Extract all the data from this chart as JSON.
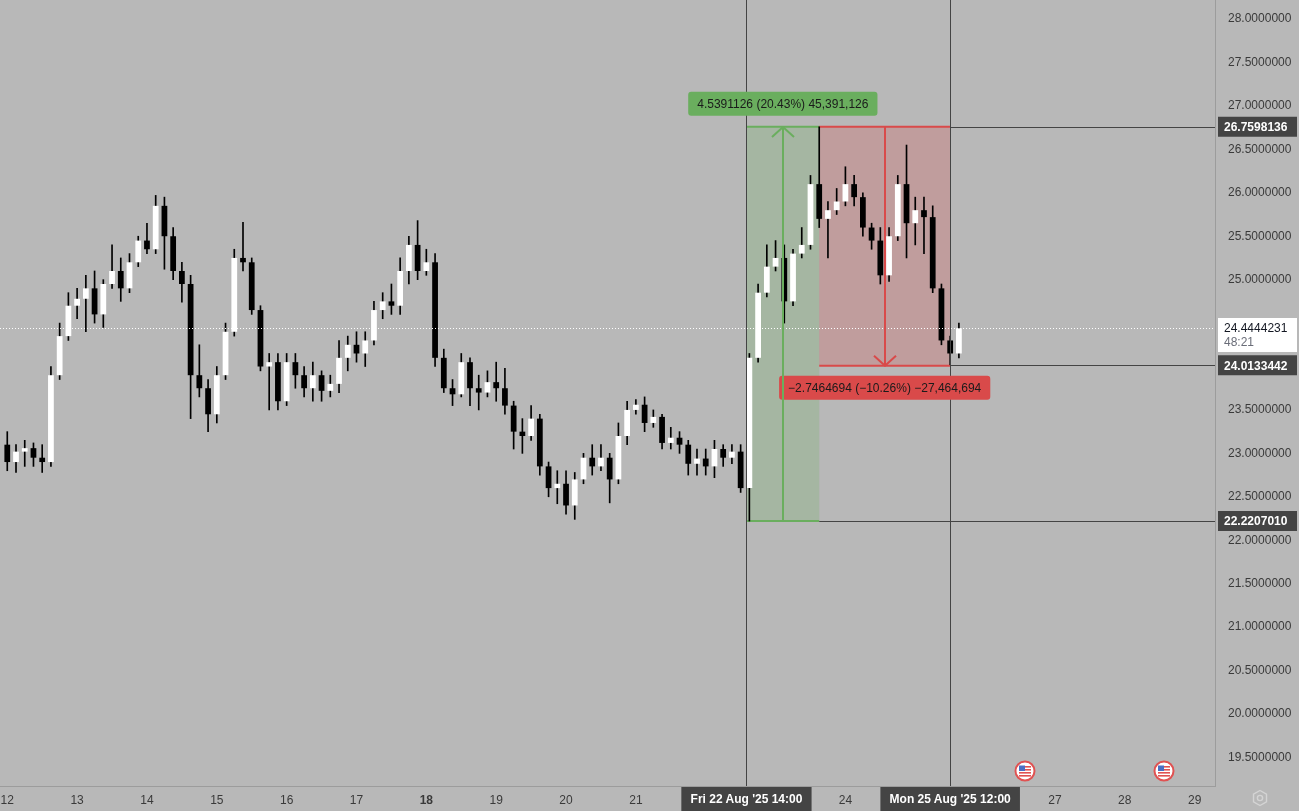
{
  "chart_data": {
    "type": "candlestick",
    "x": [
      "2025-08-12T00:00",
      "2025-08-12T03:00",
      "2025-08-12T06:00",
      "2025-08-12T09:00",
      "2025-08-12T12:00",
      "2025-08-12T15:00",
      "2025-08-12T18:00",
      "2025-08-12T21:00",
      "2025-08-13T00:00",
      "2025-08-13T03:00",
      "2025-08-13T06:00",
      "2025-08-13T09:00",
      "2025-08-13T12:00",
      "2025-08-13T15:00",
      "2025-08-13T18:00",
      "2025-08-13T21:00",
      "2025-08-14T00:00",
      "2025-08-14T03:00",
      "2025-08-14T06:00",
      "2025-08-14T09:00",
      "2025-08-14T12:00",
      "2025-08-14T15:00",
      "2025-08-14T18:00",
      "2025-08-14T21:00",
      "2025-08-15T00:00",
      "2025-08-15T03:00",
      "2025-08-15T06:00",
      "2025-08-15T09:00",
      "2025-08-15T12:00",
      "2025-08-15T15:00",
      "2025-08-15T18:00",
      "2025-08-15T21:00",
      "2025-08-16T00:00",
      "2025-08-16T03:00",
      "2025-08-16T06:00",
      "2025-08-16T09:00",
      "2025-08-16T12:00",
      "2025-08-16T15:00",
      "2025-08-16T18:00",
      "2025-08-16T21:00",
      "2025-08-17T00:00",
      "2025-08-17T03:00",
      "2025-08-17T06:00",
      "2025-08-17T09:00",
      "2025-08-17T12:00",
      "2025-08-17T15:00",
      "2025-08-17T18:00",
      "2025-08-17T21:00",
      "2025-08-18T00:00",
      "2025-08-18T03:00",
      "2025-08-18T06:00",
      "2025-08-18T09:00",
      "2025-08-18T12:00",
      "2025-08-18T15:00",
      "2025-08-18T18:00",
      "2025-08-18T21:00",
      "2025-08-19T00:00",
      "2025-08-19T03:00",
      "2025-08-19T06:00",
      "2025-08-19T09:00",
      "2025-08-19T12:00",
      "2025-08-19T15:00",
      "2025-08-19T18:00",
      "2025-08-19T21:00",
      "2025-08-20T00:00",
      "2025-08-20T03:00",
      "2025-08-20T06:00",
      "2025-08-20T09:00",
      "2025-08-20T12:00",
      "2025-08-20T15:00",
      "2025-08-20T18:00",
      "2025-08-20T21:00",
      "2025-08-21T00:00",
      "2025-08-21T03:00",
      "2025-08-21T06:00",
      "2025-08-21T09:00",
      "2025-08-21T12:00",
      "2025-08-21T15:00",
      "2025-08-21T18:00",
      "2025-08-21T21:00",
      "2025-08-22T00:00",
      "2025-08-22T03:00",
      "2025-08-22T06:00",
      "2025-08-22T09:00",
      "2025-08-22T12:00",
      "2025-08-22T15:00",
      "2025-08-22T18:00",
      "2025-08-22T21:00",
      "2025-08-23T00:00",
      "2025-08-23T03:00",
      "2025-08-23T06:00",
      "2025-08-23T09:00",
      "2025-08-23T12:00",
      "2025-08-23T15:00",
      "2025-08-23T18:00",
      "2025-08-23T21:00",
      "2025-08-24T00:00",
      "2025-08-24T03:00",
      "2025-08-24T06:00",
      "2025-08-24T09:00",
      "2025-08-24T12:00",
      "2025-08-24T15:00",
      "2025-08-24T18:00",
      "2025-08-24T21:00",
      "2025-08-25T00:00",
      "2025-08-25T03:00",
      "2025-08-25T06:00",
      "2025-08-25T09:00",
      "2025-08-25T12:00",
      "2025-08-25T15:00"
    ],
    "ohlc": [
      [
        23.1,
        23.25,
        22.8,
        22.9
      ],
      [
        22.9,
        23.1,
        22.78,
        23.02
      ],
      [
        23.02,
        23.15,
        22.85,
        23.06
      ],
      [
        23.06,
        23.12,
        22.85,
        22.95
      ],
      [
        22.95,
        23.1,
        22.78,
        22.9
      ],
      [
        22.9,
        24.0,
        22.85,
        23.9
      ],
      [
        23.9,
        24.5,
        23.85,
        24.35
      ],
      [
        24.35,
        24.85,
        24.3,
        24.7
      ],
      [
        24.7,
        24.9,
        24.55,
        24.78
      ],
      [
        24.78,
        25.05,
        24.4,
        24.9
      ],
      [
        24.9,
        25.1,
        24.5,
        24.6
      ],
      [
        24.6,
        25.0,
        24.45,
        24.95
      ],
      [
        24.95,
        25.4,
        24.9,
        25.1
      ],
      [
        25.1,
        25.25,
        24.75,
        24.9
      ],
      [
        24.9,
        25.3,
        24.85,
        25.2
      ],
      [
        25.2,
        25.5,
        25.15,
        25.45
      ],
      [
        25.45,
        25.65,
        25.3,
        25.35
      ],
      [
        25.35,
        25.97,
        25.3,
        25.85
      ],
      [
        25.85,
        25.95,
        25.12,
        25.5
      ],
      [
        25.5,
        25.6,
        25.0,
        25.1
      ],
      [
        25.1,
        25.2,
        24.74,
        24.95
      ],
      [
        24.95,
        25.05,
        23.4,
        23.9
      ],
      [
        23.9,
        24.25,
        23.65,
        23.75
      ],
      [
        23.75,
        23.85,
        23.25,
        23.45
      ],
      [
        23.45,
        24.0,
        23.35,
        23.9
      ],
      [
        23.9,
        24.5,
        23.85,
        24.4
      ],
      [
        24.4,
        25.35,
        24.35,
        25.25
      ],
      [
        25.25,
        25.66,
        25.1,
        25.2
      ],
      [
        25.2,
        25.25,
        24.6,
        24.65
      ],
      [
        24.65,
        24.7,
        23.95,
        24.0
      ],
      [
        24.0,
        24.15,
        23.5,
        24.05
      ],
      [
        24.05,
        24.15,
        23.5,
        23.6
      ],
      [
        23.6,
        24.15,
        23.55,
        24.05
      ],
      [
        24.05,
        24.15,
        23.75,
        23.9
      ],
      [
        23.9,
        24.0,
        23.65,
        23.75
      ],
      [
        23.75,
        24.05,
        23.6,
        23.9
      ],
      [
        23.9,
        23.95,
        23.6,
        23.72
      ],
      [
        23.72,
        23.9,
        23.65,
        23.8
      ],
      [
        23.8,
        24.3,
        23.7,
        24.1
      ],
      [
        24.1,
        24.35,
        23.95,
        24.25
      ],
      [
        24.25,
        24.4,
        24.05,
        24.15
      ],
      [
        24.15,
        24.4,
        24.0,
        24.3
      ],
      [
        24.3,
        24.75,
        24.25,
        24.65
      ],
      [
        24.65,
        24.85,
        24.55,
        24.75
      ],
      [
        24.75,
        24.95,
        24.6,
        24.7
      ],
      [
        24.7,
        25.25,
        24.6,
        25.1
      ],
      [
        25.1,
        25.5,
        24.95,
        25.4
      ],
      [
        25.4,
        25.68,
        25.0,
        25.1
      ],
      [
        25.1,
        25.35,
        25.05,
        25.2
      ],
      [
        25.2,
        25.3,
        24.0,
        24.1
      ],
      [
        24.1,
        24.2,
        23.7,
        23.75
      ],
      [
        23.75,
        23.85,
        23.55,
        23.68
      ],
      [
        23.68,
        24.15,
        23.65,
        24.05
      ],
      [
        24.05,
        24.1,
        23.55,
        23.75
      ],
      [
        23.75,
        23.9,
        23.5,
        23.7
      ],
      [
        23.7,
        23.95,
        23.65,
        23.82
      ],
      [
        23.82,
        24.05,
        23.6,
        23.75
      ],
      [
        23.75,
        23.98,
        23.45,
        23.55
      ],
      [
        23.55,
        23.6,
        23.05,
        23.25
      ],
      [
        23.25,
        23.4,
        23.0,
        23.2
      ],
      [
        23.2,
        23.55,
        23.15,
        23.4
      ],
      [
        23.4,
        23.45,
        22.75,
        22.85
      ],
      [
        22.85,
        22.9,
        22.5,
        22.6
      ],
      [
        22.6,
        22.8,
        22.42,
        22.65
      ],
      [
        22.65,
        22.8,
        22.3,
        22.4
      ],
      [
        22.4,
        22.78,
        22.24,
        22.7
      ],
      [
        22.7,
        23.0,
        22.65,
        22.95
      ],
      [
        22.95,
        23.1,
        22.75,
        22.85
      ],
      [
        22.85,
        23.1,
        22.8,
        22.95
      ],
      [
        22.95,
        23.0,
        22.43,
        22.7
      ],
      [
        22.7,
        23.35,
        22.65,
        23.2
      ],
      [
        23.2,
        23.6,
        23.1,
        23.5
      ],
      [
        23.5,
        23.62,
        23.45,
        23.56
      ],
      [
        23.56,
        23.65,
        23.25,
        23.35
      ],
      [
        23.35,
        23.5,
        23.3,
        23.42
      ],
      [
        23.42,
        23.45,
        23.05,
        23.12
      ],
      [
        23.12,
        23.3,
        23.05,
        23.18
      ],
      [
        23.18,
        23.25,
        23.0,
        23.1
      ],
      [
        23.1,
        23.15,
        22.75,
        22.88
      ],
      [
        22.88,
        23.05,
        22.75,
        22.94
      ],
      [
        22.94,
        23.05,
        22.75,
        22.85
      ],
      [
        22.85,
        23.15,
        22.72,
        23.05
      ],
      [
        23.05,
        23.1,
        22.85,
        22.95
      ],
      [
        22.95,
        23.1,
        22.88,
        23.02
      ],
      [
        23.02,
        23.1,
        22.55,
        22.6
      ],
      [
        22.6,
        24.15,
        22.22,
        24.1
      ],
      [
        24.1,
        24.95,
        24.05,
        24.85
      ],
      [
        24.85,
        25.4,
        24.8,
        25.15
      ],
      [
        25.15,
        25.45,
        25.1,
        25.25
      ],
      [
        25.25,
        25.4,
        24.5,
        24.75
      ],
      [
        24.75,
        25.35,
        24.7,
        25.3
      ],
      [
        25.3,
        25.6,
        25.25,
        25.4
      ],
      [
        25.4,
        26.2,
        25.35,
        26.1
      ],
      [
        26.1,
        26.76,
        25.6,
        25.7
      ],
      [
        25.7,
        25.9,
        25.25,
        25.8
      ],
      [
        25.8,
        26.05,
        25.75,
        25.9
      ],
      [
        25.9,
        26.3,
        25.85,
        26.1
      ],
      [
        26.1,
        26.2,
        25.85,
        25.95
      ],
      [
        25.95,
        26.0,
        25.5,
        25.6
      ],
      [
        25.6,
        25.65,
        25.35,
        25.45
      ],
      [
        25.45,
        25.6,
        24.95,
        25.05
      ],
      [
        25.05,
        25.6,
        24.98,
        25.5
      ],
      [
        25.5,
        26.2,
        25.45,
        26.1
      ],
      [
        26.1,
        26.55,
        25.25,
        25.65
      ],
      [
        25.65,
        25.95,
        25.4,
        25.8
      ],
      [
        25.8,
        25.95,
        25.3,
        25.72
      ],
      [
        25.72,
        25.85,
        24.85,
        24.9
      ],
      [
        24.9,
        24.95,
        24.25,
        24.3
      ],
      [
        24.3,
        24.35,
        24.02,
        24.15
      ],
      [
        24.15,
        24.5,
        24.1,
        24.44
      ]
    ],
    "series": [
      {
        "type": "line",
        "color": "#6aae5e",
        "x": [
          "2025-08-22T14:00",
          "2025-08-23T15:00"
        ],
        "values": [
          26.76,
          26.76
        ],
        "lower": [
          22.22,
          22.22
        ],
        "upper": [
          26.76,
          26.76
        ]
      },
      {
        "type": "line",
        "color": "#d94a4a",
        "x": [
          "2025-08-23T15:00",
          "2025-08-25T12:00"
        ],
        "values": [
          26.76,
          26.76
        ],
        "lower": [
          24.01,
          24.01
        ],
        "upper": [
          26.76,
          26.76
        ]
      },
      {
        "type": "line",
        "color": "#6aae5e",
        "x": [
          "2025-08-22T14:00",
          "2025-08-23T15:00"
        ],
        "values": [
          22.22,
          22.22
        ]
      },
      {
        "type": "line",
        "color": "#d94a4a",
        "x": [
          "2025-08-23T15:00",
          "2025-08-25T12:00"
        ],
        "values": [
          24.01,
          24.01
        ]
      }
    ],
    "annotations": [
      "48:21",
      {
        "text": "4.5391126 (20.43%) 45,391,126",
        "x": "2025-08-23T02:30",
        "y": 26.76
      },
      {
        "text": "−2.7464694 (−10.26%) −27,464,694",
        "x": "2025-08-24T13:30",
        "y": 24.01
      }
    ],
    "ref_lines": [
      {
        "axis": "x",
        "value": "2025-08-22T14:00",
        "label": "Fri 22 Aug '25 14:00",
        "color": "#444444"
      },
      {
        "axis": "x",
        "value": "2025-08-25T12:00",
        "label": "Mon 25 Aug '25 12:00",
        "color": "#444444"
      },
      {
        "axis": "y",
        "value": 26.7598136,
        "label": "26.7598136",
        "color": "#444444"
      },
      {
        "axis": "y",
        "value": 24.0133442,
        "label": "24.0133442",
        "color": "#444444"
      },
      {
        "axis": "y",
        "value": 22.220701,
        "label": "22.2207010",
        "color": "#444444"
      },
      {
        "axis": "y",
        "value": 24.4444231,
        "label": "24.4444231",
        "color": "#ffffff",
        "line_style": "dotted"
      }
    ],
    "xlim": [
      "2025-08-11T21:30",
      "2025-08-29T07:00"
    ],
    "xticks": [
      {
        "value": "2025-08-12",
        "label": "12"
      },
      {
        "value": "2025-08-13",
        "label": "13"
      },
      {
        "value": "2025-08-14",
        "label": "14"
      },
      {
        "value": "2025-08-15",
        "label": "15"
      },
      {
        "value": "2025-08-16",
        "label": "16"
      },
      {
        "value": "2025-08-17",
        "label": "17"
      },
      {
        "value": "2025-08-18",
        "label": "18"
      },
      {
        "value": "2025-08-19",
        "label": "19"
      },
      {
        "value": "2025-08-20",
        "label": "20"
      },
      {
        "value": "2025-08-21",
        "label": "21"
      },
      {
        "value": "2025-08-24",
        "label": "24"
      },
      {
        "value": "2025-08-27",
        "label": "27"
      },
      {
        "value": "2025-08-28",
        "label": "28"
      },
      {
        "value": "2025-08-29",
        "label": "29"
      }
    ],
    "ylim": [
      19.17,
      28.22
    ],
    "yticks": [
      {
        "value": 19.5,
        "label": "19.5000000"
      },
      {
        "value": 20.0,
        "label": "20.0000000"
      },
      {
        "value": 20.5,
        "label": "20.5000000"
      },
      {
        "value": 21.0,
        "label": "21.0000000"
      },
      {
        "value": 21.5,
        "label": "21.5000000"
      },
      {
        "value": 22.0,
        "label": "22.0000000"
      },
      {
        "value": 22.5,
        "label": "22.5000000"
      },
      {
        "value": 23.0,
        "label": "23.0000000"
      },
      {
        "value": 23.5,
        "label": "23.5000000"
      },
      {
        "value": 25.0,
        "label": "25.0000000"
      },
      {
        "value": 25.5,
        "label": "25.5000000"
      },
      {
        "value": 26.0,
        "label": "26.0000000"
      },
      {
        "value": 26.5,
        "label": "26.5000000"
      },
      {
        "value": 27.0,
        "label": "27.0000000"
      },
      {
        "value": 27.5,
        "label": "27.5000000"
      },
      {
        "value": 28.0,
        "label": "28.0000000"
      }
    ]
  }
}
